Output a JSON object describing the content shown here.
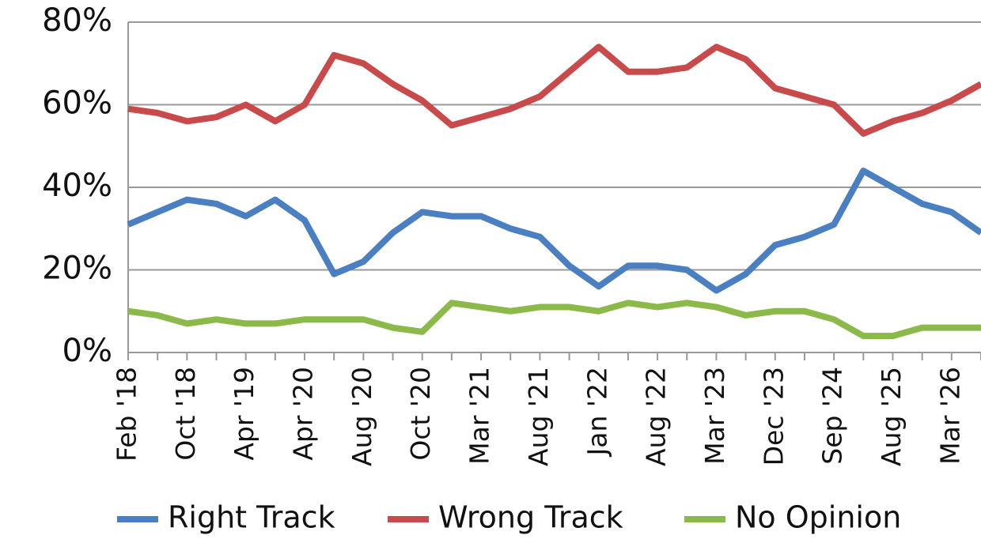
{
  "chart_data": {
    "type": "line",
    "categories": [
      "Feb '18",
      null,
      "Oct '18",
      null,
      "Apr '19",
      null,
      "Apr '20",
      null,
      "Aug '20",
      null,
      "Oct '20",
      null,
      "Mar '21",
      null,
      "Aug '21",
      null,
      "Jan '22",
      null,
      "Aug '22",
      null,
      "Mar '23",
      null,
      "Dec '23",
      null,
      "Sep '24",
      null,
      "Aug '25",
      null,
      "Mar '26",
      null
    ],
    "series": [
      {
        "name": "Right Track",
        "color": "#4a7fc1",
        "values": [
          31,
          34,
          37,
          36,
          33,
          37,
          32,
          19,
          22,
          29,
          34,
          33,
          33,
          30,
          28,
          21,
          16,
          21,
          21,
          20,
          15,
          19,
          26,
          28,
          31,
          44,
          40,
          36,
          34,
          29
        ]
      },
      {
        "name": "Wrong Track",
        "color": "#c94a4a",
        "values": [
          59,
          58,
          56,
          57,
          60,
          56,
          60,
          72,
          70,
          65,
          61,
          55,
          57,
          59,
          62,
          68,
          74,
          68,
          68,
          69,
          74,
          71,
          64,
          62,
          60,
          53,
          56,
          58,
          61,
          65
        ]
      },
      {
        "name": "No Opinion",
        "color": "#8cba4a",
        "values": [
          10,
          9,
          7,
          8,
          7,
          7,
          8,
          8,
          8,
          6,
          5,
          12,
          11,
          10,
          11,
          11,
          10,
          12,
          11,
          12,
          11,
          9,
          10,
          10,
          8,
          4,
          4,
          6,
          6,
          6
        ]
      }
    ],
    "ylim": [
      0,
      80
    ],
    "yticks": [
      {
        "value": 0,
        "label": "0%"
      },
      {
        "value": 20,
        "label": "20%"
      },
      {
        "value": 40,
        "label": "40%"
      },
      {
        "value": 60,
        "label": "60%"
      },
      {
        "value": 80,
        "label": "80%"
      }
    ],
    "grid": true,
    "legend": "bottom"
  }
}
